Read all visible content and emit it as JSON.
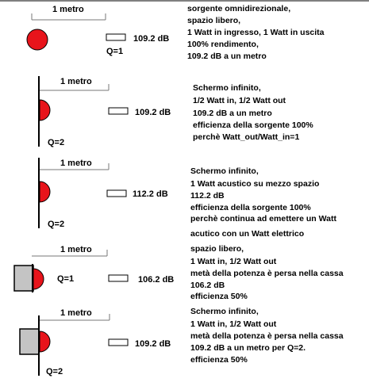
{
  "rows": [
    {
      "distance_label": "1 metro",
      "level": "109.2 dB",
      "q": "Q=1",
      "lines": [
        "sorgente omnidirezionale,",
        "spazio libero,",
        "1 Watt in ingresso,  1 Watt in uscita",
        "100% rendimento,",
        "109.2 dB a un metro"
      ]
    },
    {
      "distance_label": "1 metro",
      "level": "109.2  dB",
      "q": "Q=2",
      "lines": [
        "Schermo infinito,",
        "1/2 Watt in, 1/2 Watt out",
        "109.2 dB a un metro",
        "efficienza della sorgente 100%",
        "perchè  Watt_out/Watt_in=1"
      ]
    },
    {
      "distance_label": "1 metro",
      "level": "112.2 dB",
      "q": "Q=2",
      "lines": [
        "Schermo infinito,",
        "1 Watt acustico  su mezzo spazio",
        "112.2 dB",
        "efficienza della sorgente 100%",
        "perchè continua ad emettere un Watt",
        "acutico con un Watt elettrico"
      ]
    },
    {
      "distance_label": "1 metro",
      "level": "106.2 dB",
      "q": "Q=1",
      "lines": [
        "spazio libero,",
        "1 Watt in, 1/2 Watt out",
        "metà della potenza è persa nella cassa",
        "106.2 dB",
        "efficienza 50%"
      ]
    },
    {
      "distance_label": "1 metro",
      "level": "109.2  dB",
      "q": "Q=2",
      "lines": [
        "Schermo infinito,",
        "1 Watt in, 1/2 Watt out",
        "metà della potenza è persa nella cassa",
        "109.2 dB a un metro per Q=2.",
        "efficienza 50%"
      ]
    }
  ],
  "colors": {
    "source": "#e8141b",
    "cabinet": "#c4c4c4",
    "line": "#000000"
  }
}
